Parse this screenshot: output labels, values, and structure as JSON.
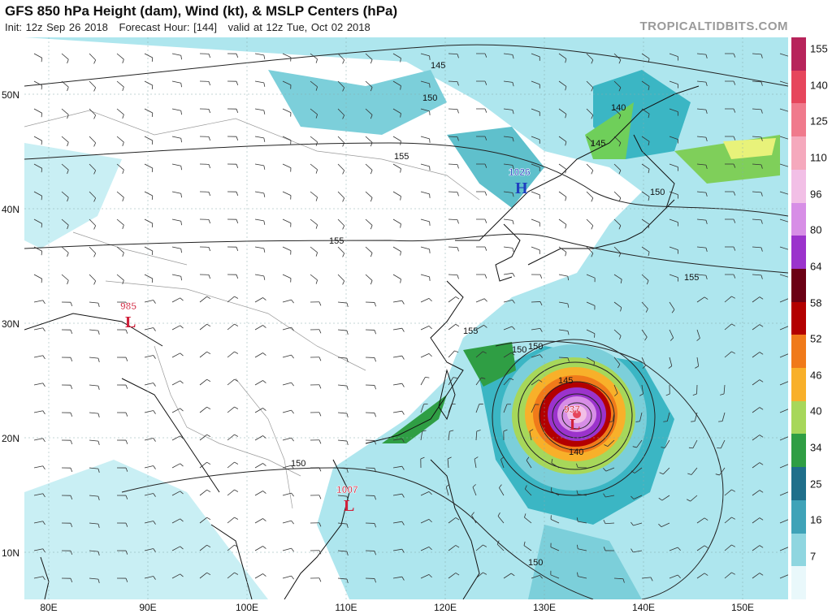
{
  "header": {
    "title": "GFS 850 hPa Height (dam), Wind (kt), & MSLP Centers (hPa)",
    "init": "Init: 12z Sep 26 2018",
    "forecast_hour": "Forecast Hour: [144]",
    "valid": "valid at 12z Tue, Oct 02 2018",
    "brand": "TROPICALTIDBITS.COM"
  },
  "axes": {
    "lat_labels": [
      "50N",
      "40N",
      "30N",
      "20N",
      "10N"
    ],
    "lon_labels": [
      "80E",
      "90E",
      "100E",
      "110E",
      "120E",
      "130E",
      "140E",
      "150E"
    ]
  },
  "pressure_centers": [
    {
      "value": "985",
      "letter": "L",
      "color": "#d0203a"
    },
    {
      "value": "1026",
      "letter": "H",
      "color": "#1f3fbf"
    },
    {
      "value": "1007",
      "letter": "L",
      "color": "#d0203a"
    },
    {
      "value": "937",
      "letter": "L",
      "color": "#d0203a"
    }
  ],
  "height_contour_labels": [
    "145",
    "150",
    "155",
    "155",
    "155",
    "150",
    "140",
    "145",
    "150",
    "155",
    "150",
    "145",
    "140",
    "150",
    "150"
  ],
  "wind_scale": {
    "unit": "kt",
    "labels": [
      "155",
      "140",
      "125",
      "110",
      "96",
      "80",
      "64",
      "58",
      "52",
      "46",
      "40",
      "34",
      "25",
      "16",
      "7"
    ],
    "colors": [
      "#b7245b",
      "#e6465c",
      "#f07a8c",
      "#f5a9bd",
      "#f2bfe6",
      "#d78ee6",
      "#9b33cc",
      "#6b0014",
      "#b30000",
      "#f07a1a",
      "#f8b02a",
      "#a7d75a",
      "#2f9e44",
      "#1f6f8b",
      "#3fa3b8",
      "#8fd6e0",
      "#e9f8fb"
    ]
  },
  "colors": {
    "land_outline": "#111111",
    "contour": "#222222",
    "wind_light": "#aee6ee",
    "wind_mid": "#3bb6c4",
    "wind_strong": "#1e7f8d"
  }
}
